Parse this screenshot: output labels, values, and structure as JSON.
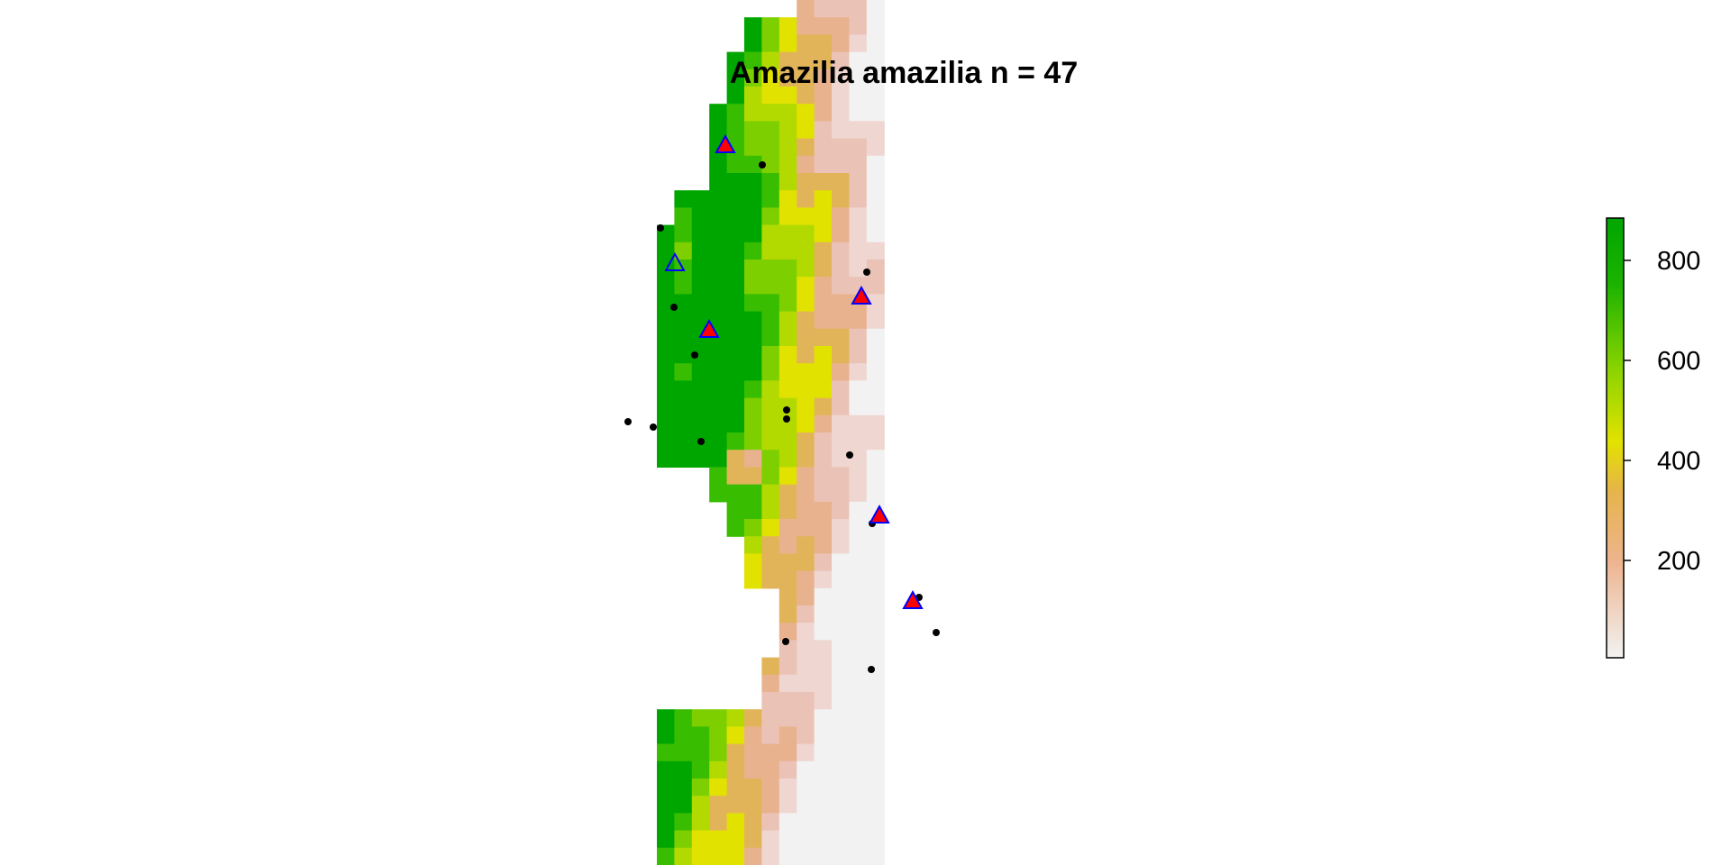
{
  "map": {
    "title": "Amazilia amazilia n = 47",
    "legend": {
      "ticks": [
        "200",
        "400",
        "600",
        "800"
      ],
      "color_stops": [
        "#f2f2f2",
        "#edb48e",
        "#e6b44a",
        "#e2e200",
        "#8ed400",
        "#1bb300",
        "#00a600"
      ]
    },
    "colors": {
      "occurrence_point": "#000000",
      "triangle_outline": "#0000ff",
      "triangle_fill": "#ff0000"
    }
  }
}
